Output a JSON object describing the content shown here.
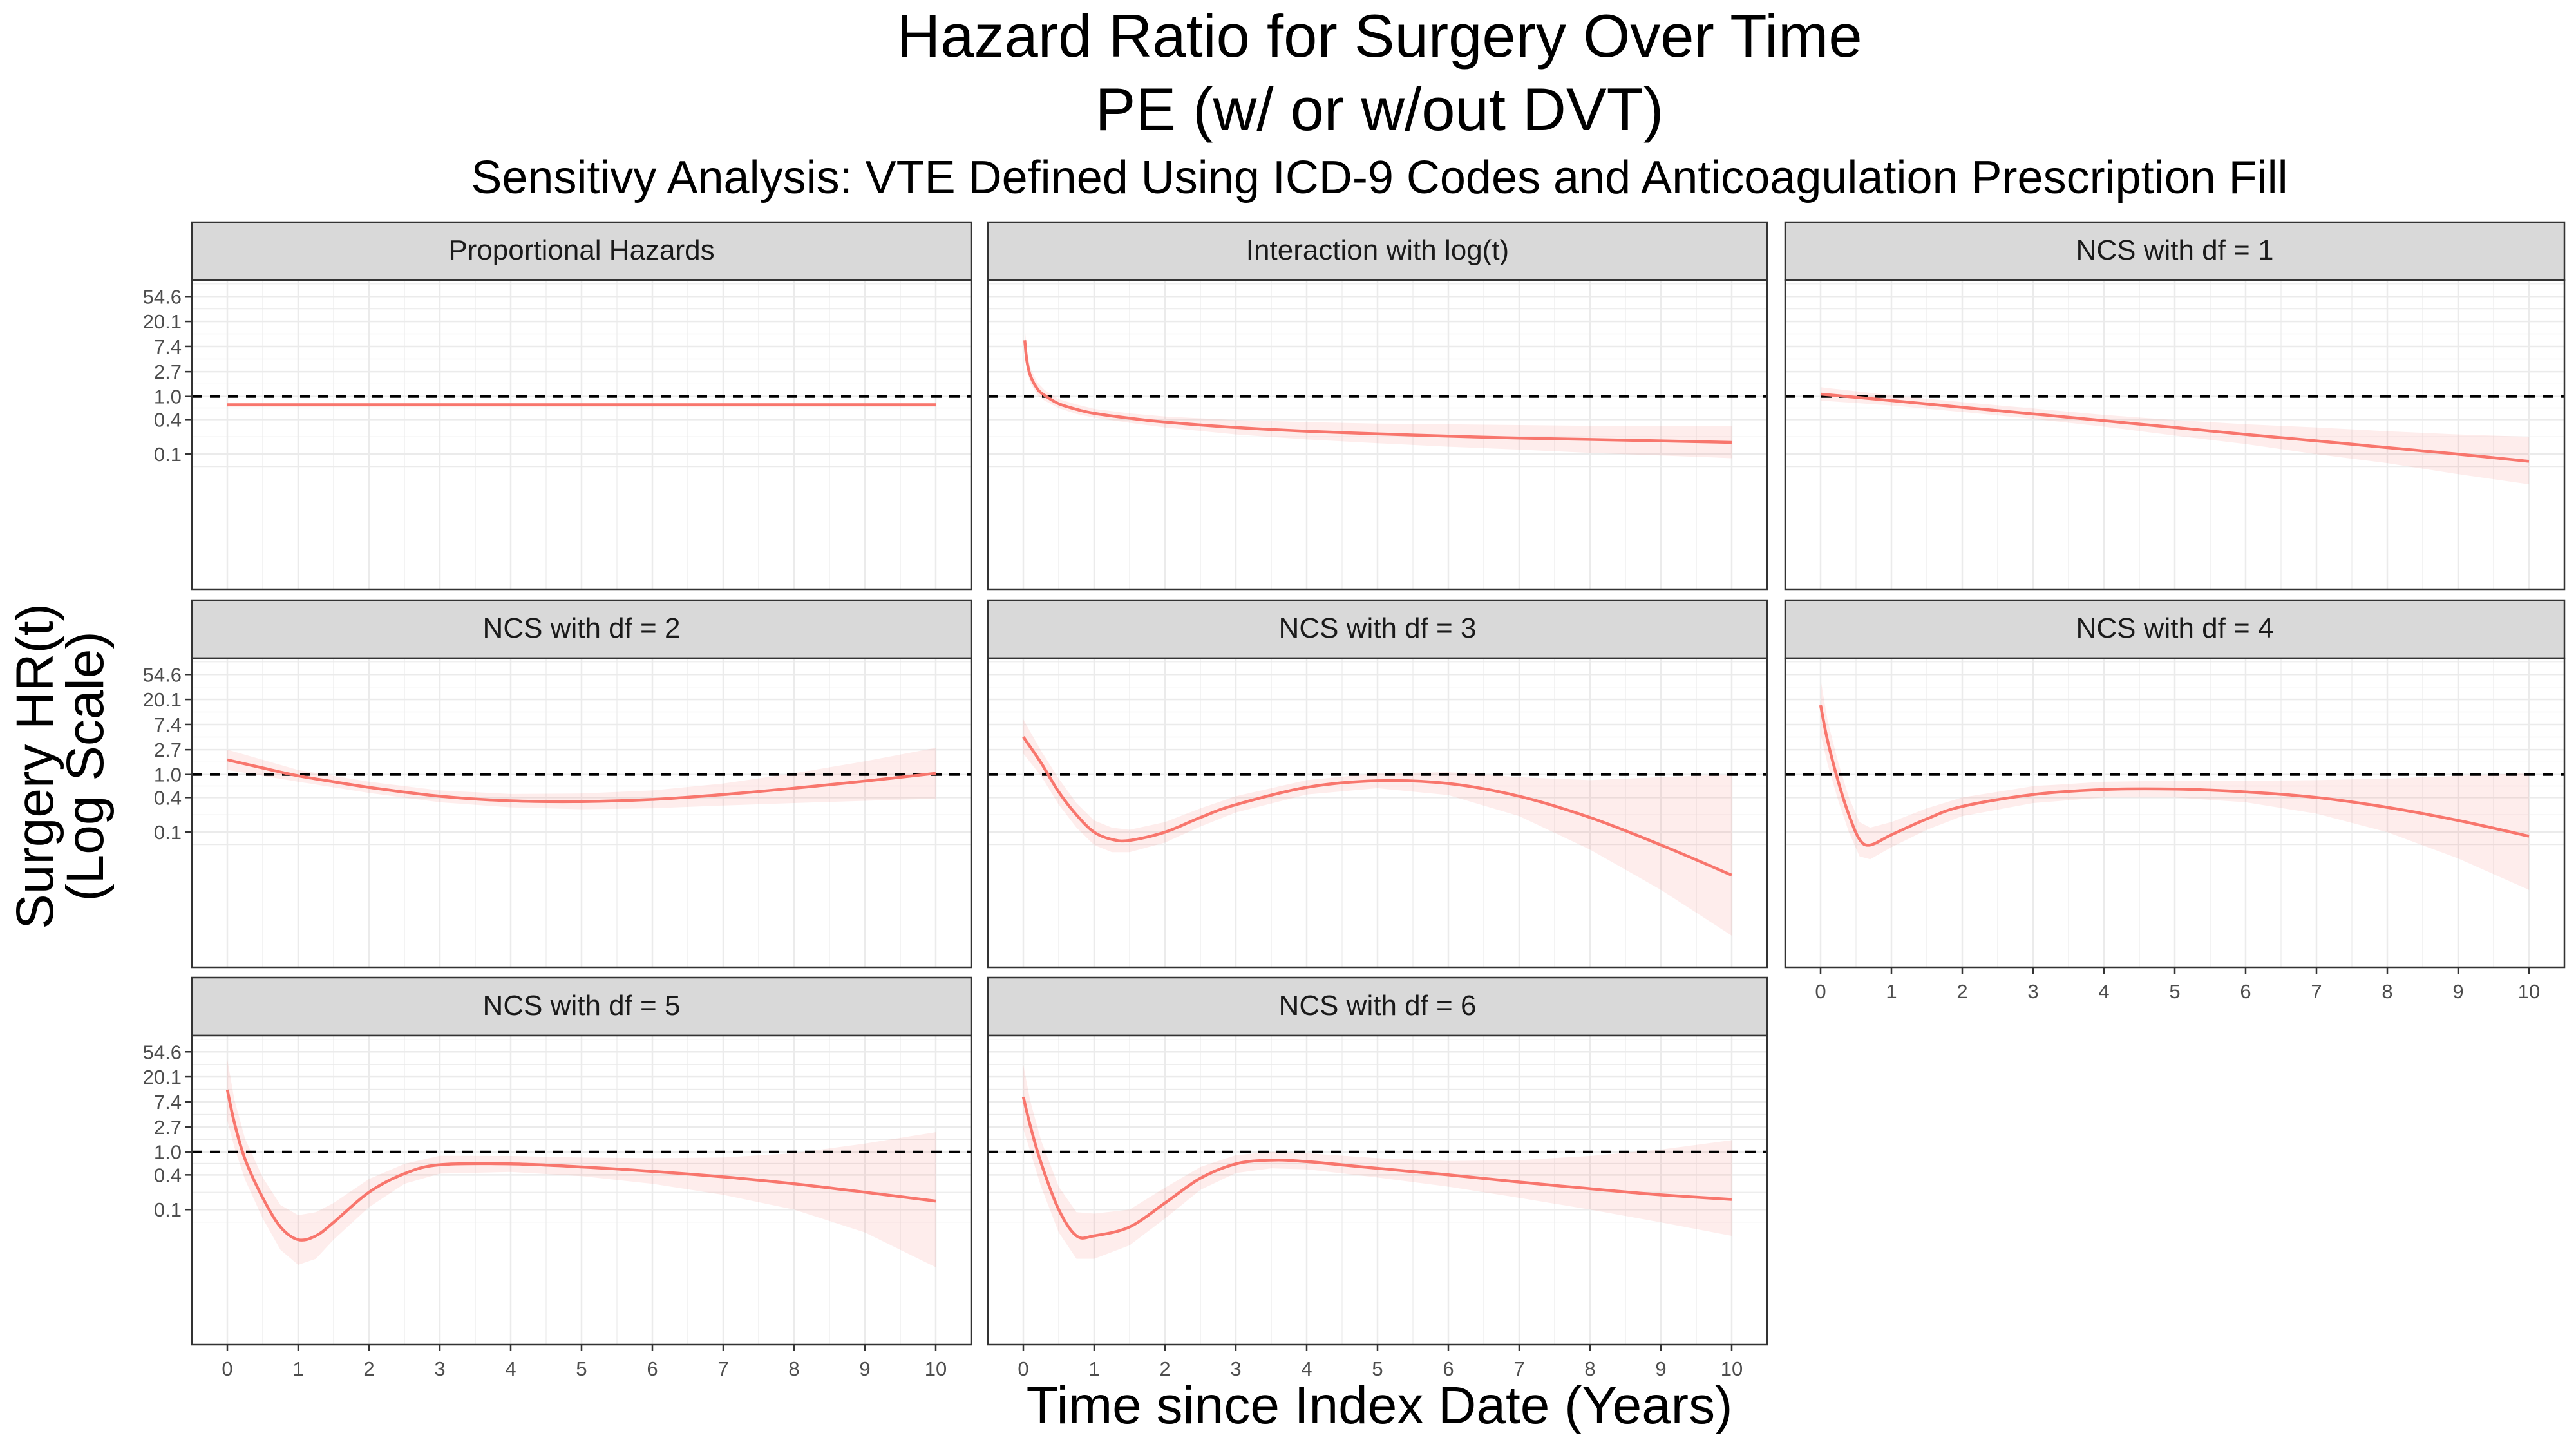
{
  "chart_data": {
    "type": "line",
    "title_lines": [
      "Hazard Ratio for Surgery Over Time",
      "PE (w/ or w/out DVT)"
    ],
    "subtitle": "Sensitivy Analysis: VTE Defined Using ICD-9 Codes and Anticoagulation Prescription Fill",
    "xlabel": "Time since Index Date (Years)",
    "ylabel_lines": [
      "Surgery HR(t)",
      "(Log Scale)"
    ],
    "y_scale": "log",
    "x_ticks": [
      0,
      1,
      2,
      3,
      4,
      5,
      6,
      7,
      8,
      9,
      10
    ],
    "y_ticks": [
      0.1,
      0.4,
      1.0,
      2.7,
      7.4,
      20.1,
      54.6
    ],
    "y_tick_labels": [
      "0.1",
      "0.4",
      "1.0",
      "2.7",
      "7.4",
      "20.1",
      "54.6"
    ],
    "xlim": [
      -0.5,
      10.5
    ],
    "ylim_log": [
      -7.7,
      4.65
    ],
    "reference_line": 1.0,
    "grid": true,
    "line_color": "#F8766D",
    "band_color": "#F8766D",
    "panels": [
      {
        "label": "Proportional Hazards",
        "x": [
          0,
          10
        ],
        "hr": [
          0.72,
          0.72
        ],
        "lower": [
          0.66,
          0.66
        ],
        "upper": [
          0.78,
          0.78
        ]
      },
      {
        "label": "Interaction with log(t)",
        "x": [
          0.02,
          0.05,
          0.1,
          0.2,
          0.3,
          0.5,
          0.75,
          1,
          1.5,
          2,
          3,
          4,
          5,
          6,
          7,
          8,
          9,
          10
        ],
        "hr": [
          9.5,
          4.2,
          2.3,
          1.35,
          1.05,
          0.75,
          0.6,
          0.51,
          0.42,
          0.36,
          0.29,
          0.25,
          0.225,
          0.205,
          0.19,
          0.18,
          0.17,
          0.16
        ],
        "lower": [
          5.5,
          2.8,
          1.7,
          1.05,
          0.85,
          0.63,
          0.5,
          0.43,
          0.35,
          0.29,
          0.22,
          0.18,
          0.155,
          0.135,
          0.12,
          0.105,
          0.095,
          0.085
        ],
        "upper": [
          16.0,
          6.3,
          3.1,
          1.75,
          1.3,
          0.9,
          0.73,
          0.61,
          0.51,
          0.45,
          0.39,
          0.36,
          0.34,
          0.33,
          0.32,
          0.31,
          0.31,
          0.31
        ]
      },
      {
        "label": "NCS with df = 1",
        "x": [
          0,
          1,
          2,
          3,
          4,
          5,
          6,
          7,
          8,
          9,
          10
        ],
        "hr": [
          1.1,
          0.85,
          0.65,
          0.5,
          0.38,
          0.29,
          0.22,
          0.17,
          0.13,
          0.1,
          0.075
        ],
        "lower": [
          0.85,
          0.7,
          0.54,
          0.41,
          0.3,
          0.21,
          0.15,
          0.1,
          0.07,
          0.045,
          0.03
        ],
        "upper": [
          1.45,
          1.05,
          0.8,
          0.62,
          0.48,
          0.39,
          0.33,
          0.29,
          0.25,
          0.22,
          0.2
        ]
      },
      {
        "label": "NCS with df = 2",
        "x": [
          0,
          0.5,
          1,
          1.5,
          2,
          3,
          4,
          5,
          6,
          7,
          8,
          9,
          10
        ],
        "hr": [
          1.8,
          1.3,
          0.95,
          0.75,
          0.6,
          0.42,
          0.35,
          0.34,
          0.37,
          0.45,
          0.58,
          0.77,
          1.05
        ],
        "lower": [
          1.2,
          0.95,
          0.75,
          0.6,
          0.48,
          0.33,
          0.27,
          0.25,
          0.26,
          0.29,
          0.32,
          0.35,
          0.38
        ],
        "upper": [
          2.7,
          1.8,
          1.2,
          0.95,
          0.75,
          0.53,
          0.46,
          0.47,
          0.53,
          0.7,
          1.05,
          1.7,
          2.9
        ]
      },
      {
        "label": "NCS with df = 3",
        "x": [
          0,
          0.25,
          0.5,
          0.75,
          1,
          1.25,
          1.5,
          2,
          2.5,
          3,
          4,
          5,
          6,
          7,
          8,
          9,
          10
        ],
        "hr": [
          4.5,
          1.6,
          0.5,
          0.2,
          0.1,
          0.075,
          0.072,
          0.1,
          0.18,
          0.3,
          0.6,
          0.78,
          0.7,
          0.42,
          0.18,
          0.06,
          0.018
        ],
        "lower": [
          2.3,
          0.95,
          0.3,
          0.12,
          0.06,
          0.045,
          0.045,
          0.066,
          0.125,
          0.22,
          0.45,
          0.58,
          0.44,
          0.19,
          0.05,
          0.01,
          0.0016
        ],
        "upper": [
          9.0,
          2.6,
          0.85,
          0.32,
          0.16,
          0.12,
          0.11,
          0.15,
          0.26,
          0.42,
          0.8,
          1.05,
          1.1,
          0.9,
          0.8,
          0.9,
          1.0
        ]
      },
      {
        "label": "NCS with df = 4",
        "x": [
          0,
          0.1,
          0.25,
          0.4,
          0.55,
          0.7,
          1,
          1.5,
          2,
          3,
          4,
          5,
          6,
          7,
          8,
          9,
          10
        ],
        "hr": [
          16.0,
          3.8,
          0.75,
          0.2,
          0.075,
          0.06,
          0.09,
          0.17,
          0.28,
          0.45,
          0.55,
          0.56,
          0.5,
          0.4,
          0.27,
          0.16,
          0.085
        ],
        "lower": [
          5.0,
          1.5,
          0.35,
          0.1,
          0.038,
          0.034,
          0.055,
          0.11,
          0.19,
          0.32,
          0.4,
          0.4,
          0.33,
          0.21,
          0.1,
          0.035,
          0.01
        ],
        "upper": [
          45.0,
          8.5,
          1.6,
          0.4,
          0.15,
          0.12,
          0.15,
          0.26,
          0.4,
          0.63,
          0.75,
          0.78,
          0.78,
          0.8,
          0.85,
          0.95,
          1.05
        ]
      },
      {
        "label": "NCS with df = 5",
        "x": [
          0,
          0.1,
          0.25,
          0.5,
          0.75,
          1,
          1.25,
          1.5,
          2,
          2.5,
          3,
          4,
          5,
          6,
          7,
          8,
          9,
          10
        ],
        "hr": [
          12.0,
          3.2,
          0.75,
          0.16,
          0.05,
          0.03,
          0.035,
          0.06,
          0.2,
          0.42,
          0.6,
          0.62,
          0.55,
          0.46,
          0.37,
          0.28,
          0.2,
          0.14
        ],
        "lower": [
          3.5,
          1.2,
          0.33,
          0.07,
          0.02,
          0.011,
          0.014,
          0.03,
          0.11,
          0.28,
          0.42,
          0.45,
          0.38,
          0.28,
          0.18,
          0.1,
          0.04,
          0.01
        ],
        "upper": [
          40.0,
          8.0,
          1.7,
          0.36,
          0.12,
          0.08,
          0.09,
          0.13,
          0.34,
          0.62,
          0.86,
          0.85,
          0.8,
          0.78,
          0.8,
          0.95,
          1.4,
          2.2
        ]
      },
      {
        "label": "NCS with df = 6",
        "x": [
          0,
          0.1,
          0.25,
          0.5,
          0.75,
          1,
          1.5,
          2,
          2.5,
          3,
          3.5,
          4,
          5,
          6,
          7,
          8,
          9,
          10
        ],
        "hr": [
          9.0,
          2.8,
          0.65,
          0.1,
          0.035,
          0.035,
          0.05,
          0.13,
          0.35,
          0.62,
          0.72,
          0.68,
          0.52,
          0.4,
          0.3,
          0.23,
          0.18,
          0.15
        ],
        "lower": [
          2.5,
          1.0,
          0.25,
          0.04,
          0.014,
          0.014,
          0.024,
          0.07,
          0.22,
          0.43,
          0.52,
          0.5,
          0.36,
          0.25,
          0.16,
          0.1,
          0.06,
          0.035
        ],
        "upper": [
          32.0,
          7.5,
          1.6,
          0.25,
          0.09,
          0.085,
          0.1,
          0.24,
          0.55,
          0.88,
          1.0,
          0.95,
          0.78,
          0.7,
          0.72,
          0.85,
          1.1,
          1.6
        ]
      }
    ]
  }
}
